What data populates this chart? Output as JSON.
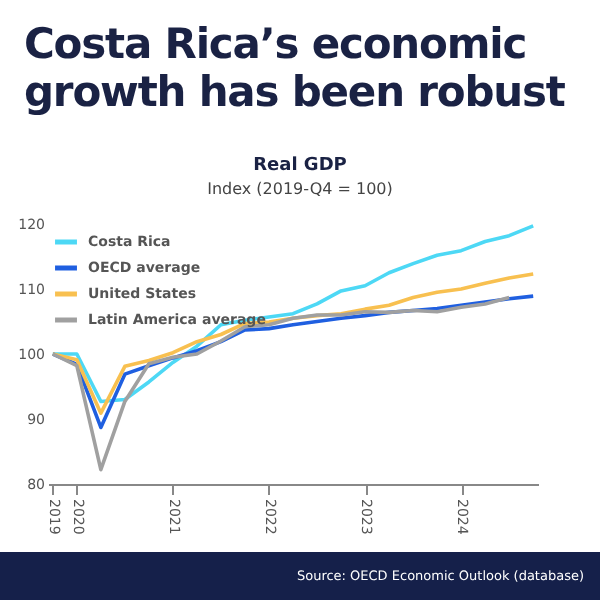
{
  "chart_data": {
    "type": "line",
    "title": "Costa Rica’s economic growth has been robust",
    "subtitle": "Real GDP",
    "ylabel": "Index (2019-Q4 = 100)",
    "categories": [
      "2019",
      "2020",
      null,
      null,
      null,
      "2021",
      null,
      null,
      null,
      "2022",
      null,
      null,
      null,
      "2023",
      null,
      null,
      null,
      "2024",
      null,
      null,
      null
    ],
    "series": [
      {
        "name": "Costa Rica",
        "color": "#4dd8f5",
        "values": [
          100,
          100,
          92.7,
          93,
          95.7,
          98.7,
          101.2,
          104.5,
          105.2,
          105.7,
          106.2,
          107.7,
          109.7,
          110.5,
          112.5,
          113.9,
          115.2,
          115.9,
          117.3,
          118.2,
          119.7
        ]
      },
      {
        "name": "OECD average",
        "color": "#1f5fe0",
        "values": [
          100,
          98.4,
          88.7,
          96.9,
          98.2,
          99.4,
          100.5,
          101.9,
          103.7,
          103.9,
          104.5,
          105,
          105.5,
          105.9,
          106.4,
          106.7,
          107,
          107.5,
          108,
          108.5,
          108.9
        ]
      },
      {
        "name": "United States",
        "color": "#f8c050",
        "values": [
          100,
          99.1,
          90.9,
          98.1,
          99,
          100.2,
          101.9,
          103,
          104.7,
          104.9,
          105.5,
          105.9,
          106.2,
          106.9,
          107.5,
          108.7,
          109.5,
          110,
          110.9,
          111.7,
          112.3
        ]
      },
      {
        "name": "Latin America average",
        "color": "#a0a0a0",
        "values": [
          100,
          98.2,
          82.2,
          92.7,
          98.5,
          99.5,
          100,
          102,
          104.2,
          104.5,
          105.5,
          106,
          106,
          106.5,
          106.4,
          106.7,
          106.5,
          107.2,
          107.7,
          108.7,
          null
        ]
      }
    ],
    "ylim": [
      80,
      120
    ],
    "yticks": [
      80,
      90,
      100,
      110,
      120
    ],
    "grid": false,
    "legend": "top left",
    "marker": "none",
    "line_style": "solid",
    "annotations": [
      "Source: OECD Economic Outlook (database)"
    ]
  }
}
